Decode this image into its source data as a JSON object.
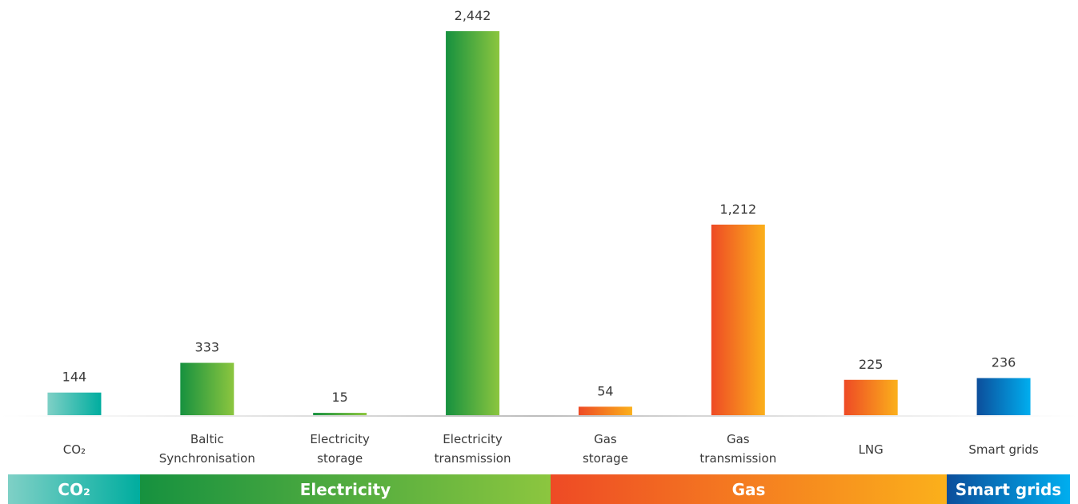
{
  "chart_data": {
    "type": "bar",
    "categories": [
      [
        "CO₂"
      ],
      [
        "Baltic",
        "Synchronisation"
      ],
      [
        "Electricity",
        "storage"
      ],
      [
        "Electricity",
        "transmission"
      ],
      [
        "Gas",
        "storage"
      ],
      [
        "Gas",
        "transmission"
      ],
      [
        "LNG"
      ],
      [
        "Smart grids"
      ]
    ],
    "values": [
      144,
      333,
      15,
      2442,
      54,
      1212,
      225,
      236
    ],
    "value_labels": [
      "144",
      "333",
      "15",
      "2,442",
      "54",
      "1,212",
      "225",
      "236"
    ],
    "bar_groups": [
      "co2",
      "electricity",
      "electricity",
      "electricity",
      "gas",
      "gas",
      "gas",
      "smart"
    ],
    "ylim": [
      0,
      2442
    ],
    "grid": false,
    "groups": [
      {
        "key": "co2",
        "label": "CO₂",
        "span": 1,
        "colors": [
          "#7fd0c6",
          "#00ad9f"
        ]
      },
      {
        "key": "electricity",
        "label": "Electricity",
        "span": 3,
        "colors": [
          "#16913f",
          "#8cc63f"
        ]
      },
      {
        "key": "gas",
        "label": "Gas",
        "span": 3,
        "colors": [
          "#ee4a25",
          "#fbb01b"
        ]
      },
      {
        "key": "smart",
        "label": "Smart grids",
        "span": 1,
        "colors": [
          "#0c4e9b",
          "#00aeef"
        ]
      }
    ]
  }
}
